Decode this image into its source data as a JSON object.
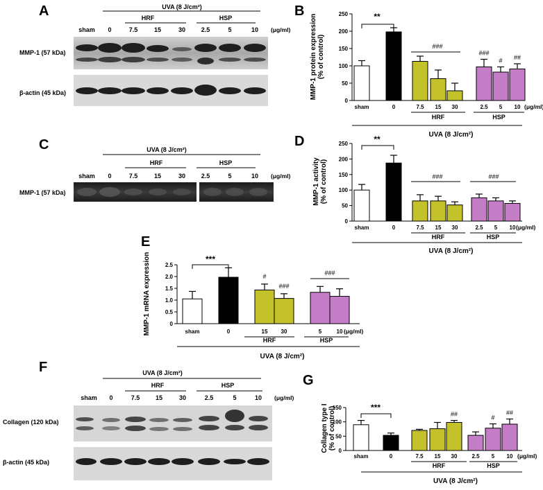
{
  "colors": {
    "sham": "#ffffff",
    "uva": "#000000",
    "hrf": "#c3c22a",
    "hsp": "#c57dc8"
  },
  "panels": {
    "A": {
      "label": "A",
      "uva": "UVA (8 J/cm²)",
      "hrf": "HRF",
      "hsp": "HSP",
      "lanes": [
        "sham",
        "0",
        "7.5",
        "15",
        "30",
        "2.5",
        "5",
        "10"
      ],
      "unit": "(μg/ml)",
      "blot1": "MMP-1 (57 kDa)",
      "blot2": "β-actin (45 kDa)"
    },
    "C": {
      "label": "C",
      "uva": "UVA (8 J/cm²)",
      "hrf": "HRF",
      "hsp": "HSP",
      "lanes": [
        "sham",
        "0",
        "7.5",
        "15",
        "30",
        "2.5",
        "5",
        "10"
      ],
      "unit": "(μg/ml)",
      "blot1": "MMP-1 (57 kDa)"
    },
    "F": {
      "label": "F",
      "uva": "UVA (8 J/cm²)",
      "hrf": "HRF",
      "hsp": "HSP",
      "lanes": [
        "sham",
        "0",
        "7.5",
        "15",
        "30",
        "2.5",
        "5",
        "10"
      ],
      "unit": "(μg/ml)",
      "blot1": "Collagen (120 kDa)",
      "blot2": "β-actin (45 kDa)"
    }
  },
  "chart_data": [
    {
      "panel": "B",
      "type": "bar",
      "ylabel": [
        "MMP-1 protein expression",
        "(% of control)"
      ],
      "ylim": [
        0,
        250
      ],
      "yticks": [
        0,
        50,
        100,
        150,
        200,
        250
      ],
      "categories": [
        "sham",
        "0",
        "7.5",
        "15",
        "30",
        "2.5",
        "5",
        "10"
      ],
      "values": [
        100,
        198,
        113,
        63,
        28,
        97,
        82,
        91
      ],
      "errors": [
        15,
        12,
        15,
        25,
        22,
        22,
        15,
        15
      ],
      "groups": [
        "sham",
        "uva",
        "hrf",
        "hrf",
        "hrf",
        "hsp",
        "hsp",
        "hsp"
      ],
      "bar_labels": [
        "",
        "",
        "",
        "",
        "",
        "###",
        "#",
        "##"
      ],
      "sig_labels": [
        "**",
        "###"
      ],
      "group_labels": {
        "hrf": "HRF",
        "hsp": "HSP"
      },
      "uva_label": "UVA (8 J/cm²)",
      "unit": "(μg/ml)"
    },
    {
      "panel": "D",
      "type": "bar",
      "ylabel": [
        "MMP-1 activity",
        "(% of control)"
      ],
      "ylim": [
        0,
        250
      ],
      "yticks": [
        0,
        50,
        100,
        150,
        200,
        250
      ],
      "categories": [
        "sham",
        "0",
        "7.5",
        "15",
        "30",
        "2.5",
        "5",
        "10"
      ],
      "values": [
        100,
        187,
        65,
        65,
        52,
        75,
        65,
        57
      ],
      "errors": [
        18,
        25,
        20,
        15,
        10,
        12,
        10,
        8
      ],
      "groups": [
        "sham",
        "uva",
        "hrf",
        "hrf",
        "hrf",
        "hsp",
        "hsp",
        "hsp"
      ],
      "sig_labels": [
        "**",
        "###",
        "###"
      ],
      "group_labels": {
        "hrf": "HRF",
        "hsp": "HSP"
      },
      "uva_label": "UVA (8 J/cm²)",
      "unit": "(μg/ml)"
    },
    {
      "panel": "E",
      "type": "bar",
      "ylabel": [
        "MMP-1 mRNA expression"
      ],
      "ylim": [
        0,
        2.5
      ],
      "yticks": [
        "0",
        "0.5",
        "1.0",
        "1.5",
        "2.0",
        "2.5"
      ],
      "categories": [
        "sham",
        "0",
        "15",
        "30",
        "5",
        "10"
      ],
      "values": [
        1.05,
        1.97,
        1.43,
        1.07,
        1.33,
        1.16
      ],
      "errors": [
        0.32,
        0.4,
        0.25,
        0.2,
        0.25,
        0.32
      ],
      "groups": [
        "sham",
        "uva",
        "hrf",
        "hrf",
        "hsp",
        "hsp"
      ],
      "bar_labels": [
        "",
        "",
        "#",
        "###",
        "",
        ""
      ],
      "sig_labels": [
        "***",
        "###"
      ],
      "group_labels": {
        "hrf": "HRF",
        "hsp": "HSP"
      },
      "uva_label": "UVA (8 J/cm²)",
      "unit": "(μg/ml)"
    },
    {
      "panel": "G",
      "type": "bar",
      "ylabel": [
        "Collagen type I",
        "(% of control)"
      ],
      "ylim": [
        0,
        150
      ],
      "yticks": [
        0,
        50,
        100,
        150
      ],
      "categories": [
        "sham",
        "0",
        "7.5",
        "15",
        "30",
        "2.5",
        "5",
        "10"
      ],
      "values": [
        90,
        53,
        70,
        76,
        98,
        53,
        78,
        92
      ],
      "errors": [
        15,
        8,
        4,
        22,
        7,
        12,
        15,
        18
      ],
      "groups": [
        "sham",
        "uva",
        "hrf",
        "hrf",
        "hrf",
        "hsp",
        "hsp",
        "hsp"
      ],
      "bar_labels": [
        "",
        "",
        "",
        "",
        "##",
        "",
        "#",
        "##"
      ],
      "sig_labels": [
        "***"
      ],
      "group_labels": {
        "hrf": "HRF",
        "hsp": "HSP"
      },
      "uva_label": "UVA (8 J/cm²)",
      "unit": "(μg/ml)"
    }
  ]
}
